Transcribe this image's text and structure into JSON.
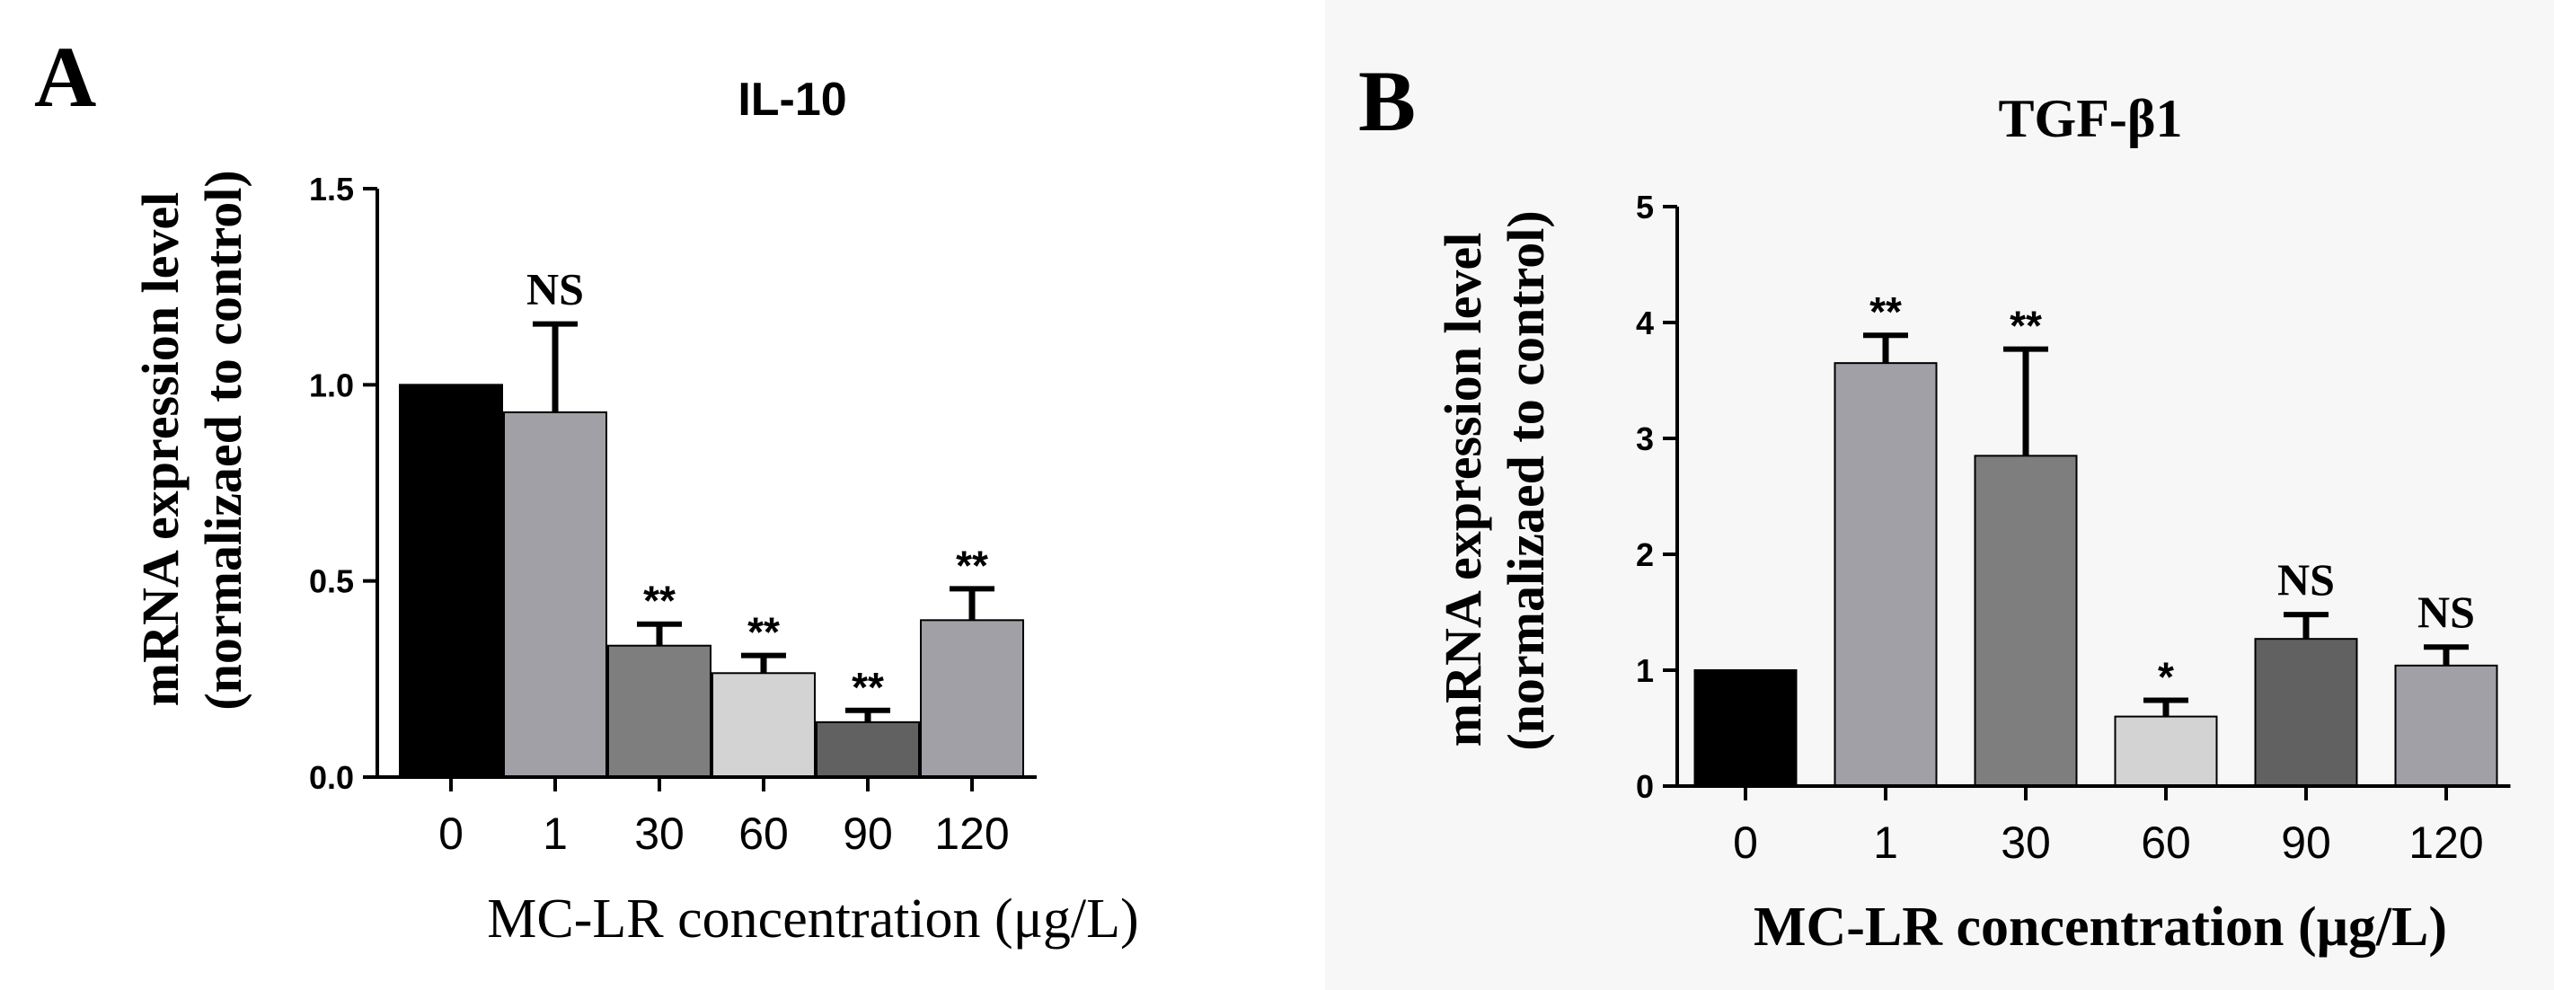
{
  "figure": {
    "panel_letters": [
      "A",
      "B"
    ],
    "bar_colors": [
      "#000000",
      "#a0a0a6",
      "#7e7e7e",
      "#d3d3d3",
      "#616161",
      "#a0a0a6"
    ],
    "bar_edge": "#000000"
  },
  "chart_data": [
    {
      "type": "bar",
      "panel": "A",
      "title": "IL-10",
      "xlabel": "MC-LR concentration (μg/L)",
      "ylabel_line1": "mRNA expression level",
      "ylabel_line2": "(normalizaed to control)",
      "categories": [
        "0",
        "1",
        "30",
        "60",
        "90",
        "120"
      ],
      "values": [
        1.0,
        0.93,
        0.335,
        0.265,
        0.14,
        0.4
      ],
      "errors": [
        0,
        0.225,
        0.055,
        0.045,
        0.03,
        0.08
      ],
      "significance": [
        "",
        "NS",
        "**",
        "**",
        "**",
        "**"
      ],
      "ylim": [
        0,
        1.5
      ],
      "yticks": [
        0.0,
        0.5,
        1.0,
        1.5
      ],
      "ytick_labels": [
        "0.0",
        "0.5",
        "1.0",
        "1.5"
      ]
    },
    {
      "type": "bar",
      "panel": "B",
      "title": "TGF-β1",
      "xlabel": "MC-LR concentration (μg/L)",
      "ylabel_line1": "mRNA expression level",
      "ylabel_line2": "(normalizaed to control)",
      "categories": [
        "0",
        "1",
        "30",
        "60",
        "90",
        "120"
      ],
      "values": [
        1.0,
        3.65,
        2.85,
        0.6,
        1.27,
        1.04
      ],
      "errors": [
        0,
        0.24,
        0.92,
        0.14,
        0.21,
        0.16
      ],
      "significance": [
        "",
        "**",
        "**",
        "*",
        "NS",
        "NS"
      ],
      "ylim": [
        0,
        5
      ],
      "yticks": [
        0,
        1,
        2,
        3,
        4,
        5
      ],
      "ytick_labels": [
        "0",
        "1",
        "2",
        "3",
        "4",
        "5"
      ]
    }
  ]
}
